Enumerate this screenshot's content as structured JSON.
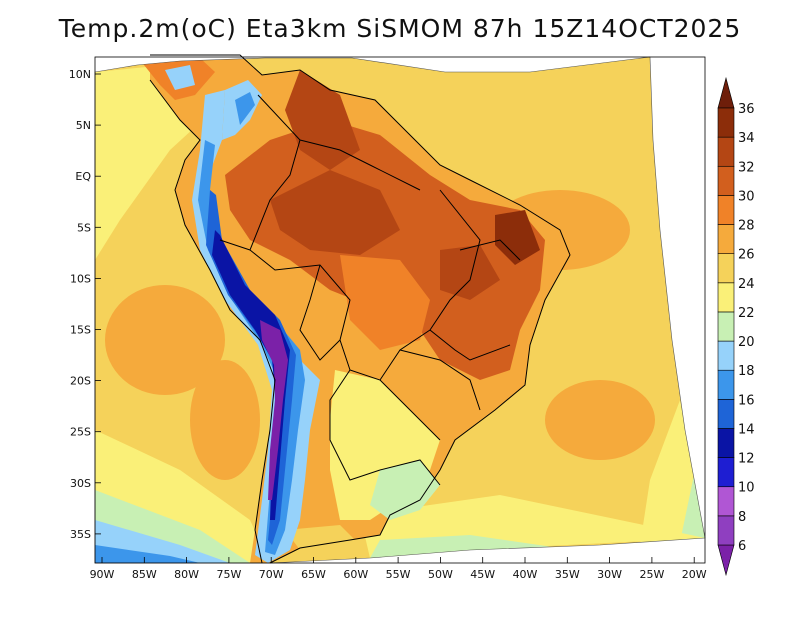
{
  "title": "Temp.2m(oC) Eta3km SiSMOM 87h 15Z14OCT2025",
  "map": {
    "lat_ticks": [
      "10N",
      "5N",
      "EQ",
      "5S",
      "10S",
      "15S",
      "20S",
      "25S",
      "30S",
      "35S"
    ],
    "lon_ticks": [
      "90W",
      "85W",
      "80W",
      "75W",
      "70W",
      "65W",
      "60W",
      "55W",
      "50W",
      "45W",
      "40W",
      "35W",
      "30W",
      "25W",
      "20W"
    ],
    "lat_range_deg": [
      -38,
      11
    ],
    "lon_range_deg": [
      -91,
      -20
    ]
  },
  "colorbar": {
    "labels": [
      "6",
      "8",
      "10",
      "12",
      "14",
      "16",
      "18",
      "20",
      "22",
      "24",
      "26",
      "28",
      "30",
      "32",
      "34",
      "36"
    ],
    "colors": [
      "#7b21a8",
      "#8f3fc0",
      "#b056d4",
      "#1e1ed2",
      "#0a14a5",
      "#1e64d7",
      "#3c96eb",
      "#96d2fa",
      "#c8f0b4",
      "#faf078",
      "#f5d25a",
      "#f5aa3c",
      "#f08228",
      "#d25f1e",
      "#b44614",
      "#8c2d0a",
      "#6e1e0a"
    ]
  }
}
